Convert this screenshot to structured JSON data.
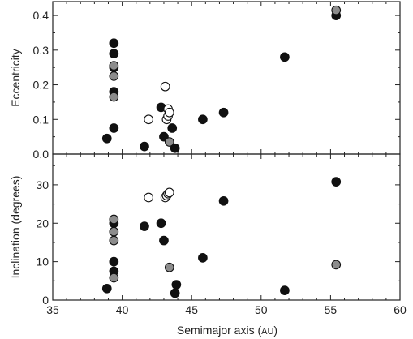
{
  "colors": {
    "black": "#111111",
    "gray": "#8c8c8c",
    "open_fill": "#ffffff",
    "axis": "#222222"
  },
  "xlabel_main": "Semimajor axis (",
  "xlabel_unit": "AU",
  "xlabel_close": ")",
  "chart_data": [
    {
      "type": "scatter",
      "panel": "top",
      "ylabel": "Eccentricity",
      "xlim": [
        35,
        60
      ],
      "ylim": [
        0,
        0.44
      ],
      "xticks": [
        35,
        40,
        45,
        50,
        55,
        60
      ],
      "yticks": [
        0.0,
        0.1,
        0.2,
        0.3,
        0.4
      ],
      "ytick_labels": [
        "0.0",
        "0.1",
        "0.2",
        "0.3",
        "0.4"
      ],
      "series": [
        {
          "style": "filled-black",
          "points": [
            [
              38.9,
              0.045
            ],
            [
              39.4,
              0.075
            ],
            [
              39.4,
              0.18
            ],
            [
              39.4,
              0.25
            ],
            [
              39.4,
              0.29
            ],
            [
              39.4,
              0.32
            ],
            [
              41.6,
              0.022
            ],
            [
              42.8,
              0.135
            ],
            [
              43.0,
              0.05
            ],
            [
              43.6,
              0.075
            ],
            [
              43.8,
              0.017
            ],
            [
              45.8,
              0.1
            ],
            [
              47.3,
              0.12
            ],
            [
              51.7,
              0.28
            ],
            [
              55.4,
              0.4
            ]
          ]
        },
        {
          "style": "filled-gray",
          "points": [
            [
              39.4,
              0.165
            ],
            [
              39.4,
              0.225
            ],
            [
              39.4,
              0.255
            ],
            [
              43.4,
              0.035
            ],
            [
              55.4,
              0.415
            ]
          ]
        },
        {
          "style": "open",
          "points": [
            [
              41.9,
              0.1
            ],
            [
              43.1,
              0.195
            ],
            [
              43.2,
              0.1
            ],
            [
              43.3,
              0.11
            ],
            [
              43.3,
              0.13
            ],
            [
              43.4,
              0.12
            ]
          ]
        }
      ]
    },
    {
      "type": "scatter",
      "panel": "bottom",
      "ylabel": "Inclination (degrees)",
      "xlim": [
        35,
        60
      ],
      "ylim": [
        0,
        38
      ],
      "xticks": [
        35,
        40,
        45,
        50,
        55,
        60
      ],
      "xtick_labels": [
        "35",
        "40",
        "45",
        "50",
        "55",
        "60"
      ],
      "yticks": [
        0,
        10,
        20,
        30
      ],
      "ytick_labels": [
        "0",
        "10",
        "20",
        "30"
      ],
      "series": [
        {
          "style": "filled-black",
          "points": [
            [
              38.9,
              3.0
            ],
            [
              39.4,
              7.5
            ],
            [
              39.4,
              10.0
            ],
            [
              39.4,
              20.0
            ],
            [
              41.6,
              19.2
            ],
            [
              42.8,
              20.0
            ],
            [
              43.0,
              15.5
            ],
            [
              43.8,
              1.8
            ],
            [
              43.9,
              4.0
            ],
            [
              45.8,
              11.0
            ],
            [
              47.3,
              25.8
            ],
            [
              51.7,
              2.5
            ],
            [
              55.4,
              30.8
            ]
          ]
        },
        {
          "style": "filled-gray",
          "points": [
            [
              39.4,
              5.8
            ],
            [
              39.4,
              15.5
            ],
            [
              39.4,
              17.8
            ],
            [
              39.4,
              21.0
            ],
            [
              43.4,
              8.5
            ],
            [
              55.4,
              9.2
            ]
          ]
        },
        {
          "style": "open",
          "points": [
            [
              41.9,
              26.7
            ],
            [
              43.1,
              26.7
            ],
            [
              43.2,
              27.2
            ],
            [
              43.3,
              27.7
            ],
            [
              43.4,
              28.0
            ]
          ]
        }
      ]
    }
  ]
}
